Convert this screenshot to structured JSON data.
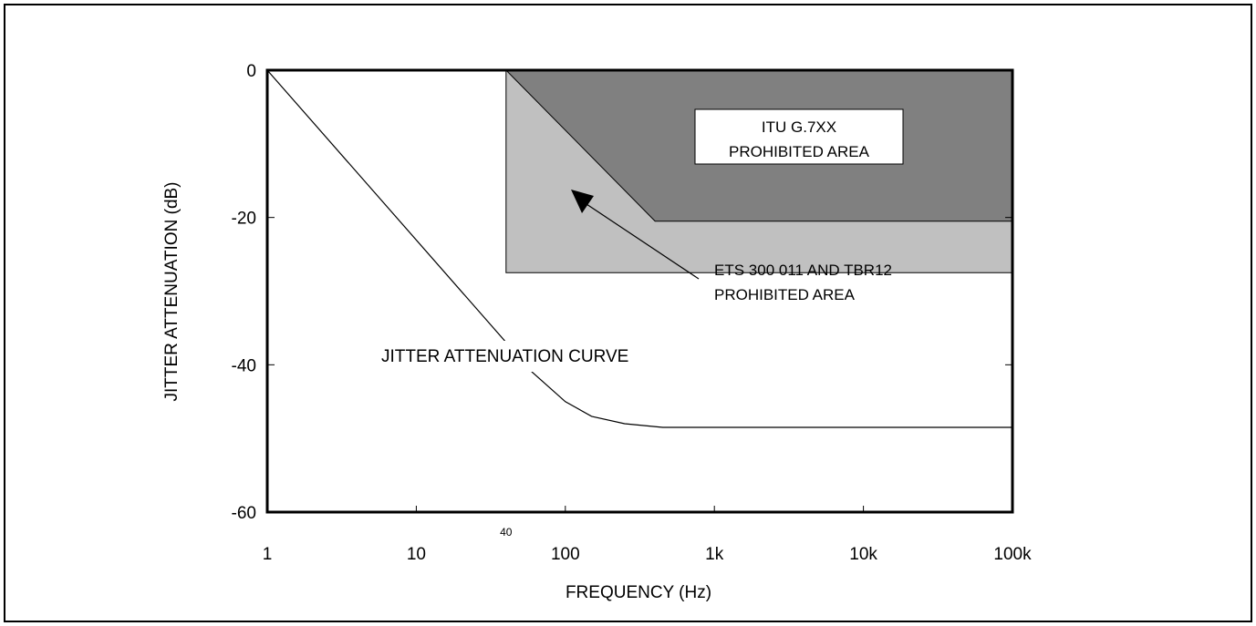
{
  "chart_data": {
    "type": "line",
    "xlabel": "FREQUENCY (Hz)",
    "ylabel": "JITTER ATTENUATION (dB)",
    "x_scale": "log",
    "xlim": [
      1,
      100000
    ],
    "ylim": [
      -60,
      0
    ],
    "x_ticks": [
      {
        "value": 1,
        "label": "1"
      },
      {
        "value": 10,
        "label": "10"
      },
      {
        "value": 100,
        "label": "100"
      },
      {
        "value": 1000,
        "label": "1k"
      },
      {
        "value": 10000,
        "label": "10k"
      },
      {
        "value": 100000,
        "label": "100k"
      }
    ],
    "x_minor_marker": {
      "value": 40,
      "label": "40"
    },
    "y_ticks": [
      {
        "value": 0,
        "label": "0"
      },
      {
        "value": -20,
        "label": "-20"
      },
      {
        "value": -40,
        "label": "-40"
      },
      {
        "value": -60,
        "label": "-60"
      }
    ],
    "grid": false,
    "series": [
      {
        "name": "JITTER ATTENUATION CURVE",
        "x": [
          1,
          60,
          100,
          150,
          250,
          450,
          100000
        ],
        "y": [
          0,
          -41,
          -45,
          -47,
          -48,
          -48.5,
          -48.5
        ]
      }
    ],
    "regions": [
      {
        "name": "ETS 300 011 AND TBR12 PROHIBITED AREA",
        "color": "#c0c0c0",
        "x": [
          40,
          100000,
          100000,
          40
        ],
        "y": [
          0,
          0,
          -27.5,
          -27.5
        ]
      },
      {
        "name": "ITU G.7XX PROHIBITED AREA",
        "color": "#808080",
        "x": [
          40,
          100000,
          100000,
          400,
          40
        ],
        "y": [
          0,
          0,
          -20.5,
          -20.5,
          0
        ]
      }
    ],
    "annotations": [
      {
        "text": "JITTER ATTENUATION CURVE"
      },
      {
        "lines": [
          "ETS 300 011 AND TBR12",
          "PROHIBITED AREA"
        ]
      },
      {
        "lines": [
          "ITU G.7XX",
          "PROHIBITED AREA"
        ]
      }
    ]
  }
}
